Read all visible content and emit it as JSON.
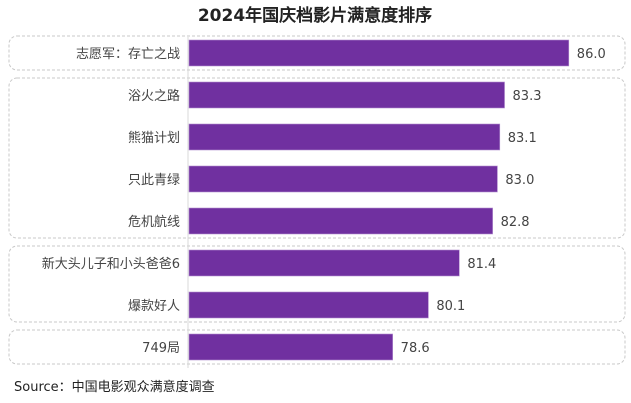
{
  "chart_data": {
    "type": "bar",
    "orientation": "horizontal",
    "title": "2024年国庆档影片满意度排序",
    "categories": [
      "志愿军：存亡之战",
      "浴火之路",
      "熊猫计划",
      "只此青绿",
      "危机航线",
      "新大头儿子和小头爸爸6",
      "爆款好人",
      "749局"
    ],
    "values": [
      86.0,
      83.3,
      83.1,
      83.0,
      82.8,
      81.4,
      80.1,
      78.6
    ],
    "value_labels": [
      "86.0",
      "83.3",
      "83.1",
      "83.0",
      "82.8",
      "81.4",
      "80.1",
      "78.6"
    ],
    "groups": [
      [
        0
      ],
      [
        1,
        2,
        3,
        4
      ],
      [
        5,
        6
      ],
      [
        7
      ]
    ],
    "xlim": [
      70,
      88
    ],
    "grid": false,
    "bar_color": "#7030A0",
    "source": "Source：中国电影观众满意度调查"
  }
}
